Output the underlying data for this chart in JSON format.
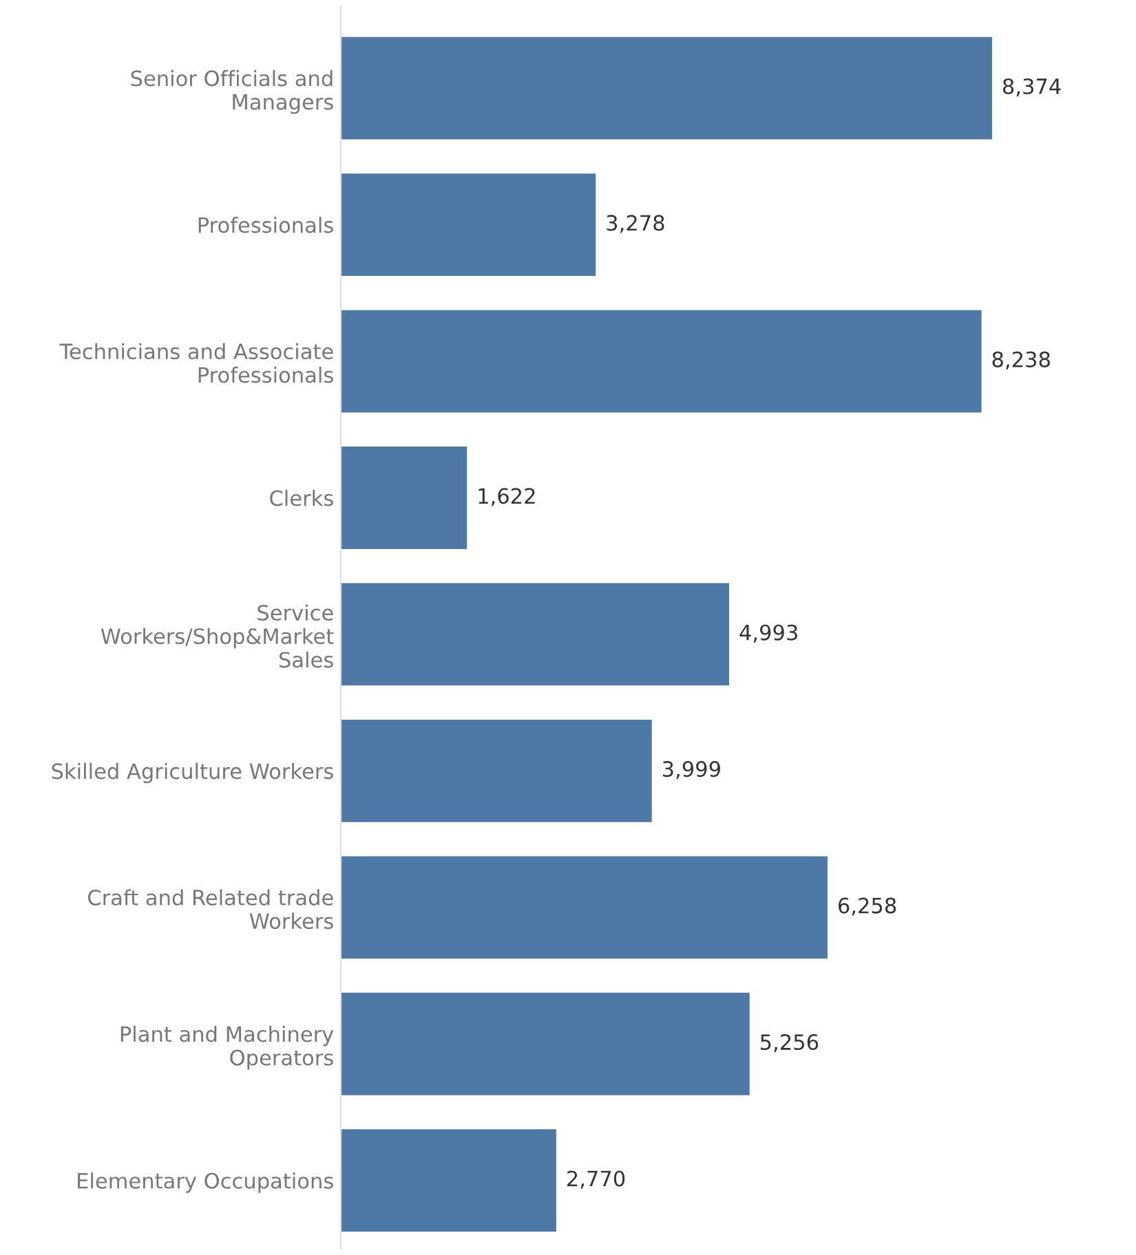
{
  "chart_data": {
    "type": "bar",
    "orientation": "horizontal",
    "value_labels": [
      "8,374",
      "3,278",
      "8,238",
      "1,622",
      "4,993",
      "3,999",
      "6,258",
      "5,256",
      "2,770"
    ],
    "grid": false,
    "legend": false,
    "tick_labels": "y",
    "categories": [
      "Senior Officials and\nManagers",
      "Professionals",
      "Technicians and Associate\nProfessionals",
      "Clerks",
      "Service\nWorkers/Shop&Market\nSales",
      "Skilled Agriculture Workers",
      "Craft and Related trade\nWorkers",
      "Plant and Machinery\nOperators",
      "Elementary Occupations"
    ],
    "values": [
      8374,
      3278,
      8238,
      1622,
      4993,
      3999,
      6258,
      5256,
      2770
    ],
    "color": "#4e79a7"
  }
}
